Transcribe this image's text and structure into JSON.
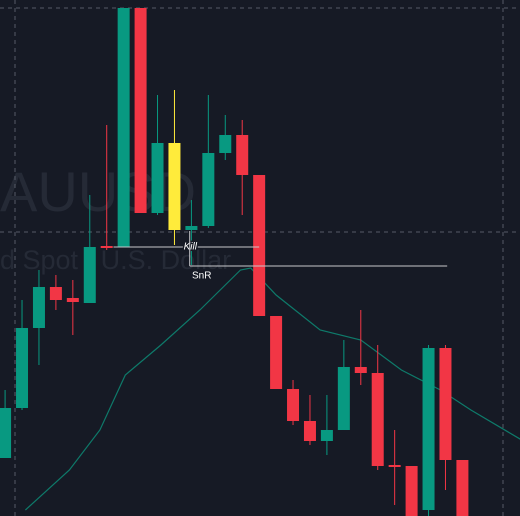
{
  "chart_data": {
    "type": "candlestick",
    "watermark": [
      "AUUSD",
      "d Spot / U.S. Dollar"
    ],
    "ylim": [
      0,
      516
    ],
    "xlim": [
      -0.3,
      30.4
    ],
    "up_color": "#089981",
    "down_color": "#f23645",
    "highlight": {
      "index": 10,
      "color": "#ffeb3b"
    },
    "open": [
      58,
      108,
      188,
      229,
      218,
      213,
      270,
      269,
      508,
      303,
      373,
      286,
      290,
      363,
      381,
      341,
      200,
      127,
      95,
      75,
      86,
      149,
      143,
      51,
      50,
      6,
      168,
      56
    ],
    "high": [
      126,
      216,
      246,
      241,
      236,
      321,
      391,
      508,
      508,
      421,
      426,
      316,
      421,
      401,
      396,
      341,
      200,
      136,
      121,
      121,
      176,
      206,
      171,
      86,
      50,
      171,
      171,
      56
    ],
    "low": [
      58,
      106,
      151,
      206,
      181,
      213,
      266,
      269,
      303,
      301,
      271,
      251,
      288,
      356,
      301,
      200,
      127,
      91,
      71,
      61,
      86,
      131,
      46,
      11,
      0,
      0,
      26,
      0
    ],
    "close": [
      108,
      188,
      229,
      216,
      214,
      269,
      268,
      508,
      303,
      373,
      286,
      290,
      363,
      381,
      341,
      200,
      127,
      95,
      75,
      86,
      149,
      143,
      50,
      49,
      0,
      168,
      56,
      0
    ],
    "moving_average": {
      "color": "#0e7a6a",
      "x": [
        1.2,
        3.8,
        5.6,
        7.1,
        9.2,
        11.5,
        13.9,
        14.5,
        16.0,
        18.6,
        21.0,
        23.4,
        25.7,
        27.5,
        30.5
      ],
      "values": [
        6,
        46,
        86,
        141,
        171,
        206,
        246,
        248,
        221,
        186,
        176,
        146,
        126,
        106,
        76
      ]
    },
    "levels": [
      {
        "label": "Kill",
        "value": 269,
        "from": 6.4,
        "to": 15.0
      },
      {
        "label": "SnR",
        "value": 250,
        "from": 10.9,
        "to": 26.1
      }
    ]
  }
}
